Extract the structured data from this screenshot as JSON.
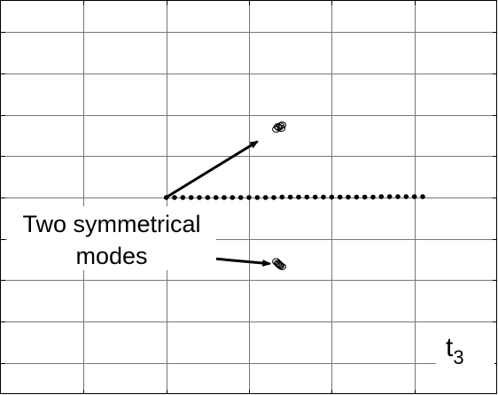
{
  "chart_data": {
    "type": "scatter",
    "title": "",
    "xlabel": "",
    "ylabel": "",
    "xlim": [
      0,
      6
    ],
    "ylim": [
      0,
      9.5
    ],
    "grid": true,
    "x_gridlines": [
      1,
      2,
      3,
      4,
      5
    ],
    "y_gridlines": [
      0.75,
      1.75,
      2.75,
      3.75,
      4.75,
      5.75,
      6.75,
      7.75,
      8.75
    ],
    "series": [
      {
        "marker": "filled-dot",
        "x": [
          2.0,
          2.1,
          2.2,
          2.3,
          2.4,
          2.5,
          2.6,
          2.7,
          2.8,
          2.9,
          3.0,
          3.1,
          3.2,
          3.3,
          3.4,
          3.5,
          3.6,
          3.7,
          3.8,
          3.9,
          4.0,
          4.1,
          4.2,
          4.3,
          4.4,
          4.5,
          4.6,
          4.7,
          4.8,
          4.9,
          5.0,
          5.1
        ],
        "y": [
          4.75,
          4.75,
          4.75,
          4.75,
          4.75,
          4.75,
          4.75,
          4.75,
          4.75,
          4.75,
          4.75,
          4.75,
          4.75,
          4.75,
          4.76,
          4.76,
          4.76,
          4.76,
          4.76,
          4.76,
          4.76,
          4.76,
          4.76,
          4.76,
          4.76,
          4.76,
          4.77,
          4.77,
          4.77,
          4.77,
          4.77,
          4.77
        ]
      },
      {
        "marker": "open-circle",
        "x": [
          3.33,
          3.36,
          3.38,
          3.4,
          3.35,
          3.39
        ],
        "y": [
          6.4,
          6.44,
          6.48,
          6.5,
          6.46,
          6.42
        ]
      },
      {
        "marker": "open-circle",
        "x": [
          3.33,
          3.35,
          3.37,
          3.4,
          3.36,
          3.38
        ],
        "y": [
          3.2,
          3.16,
          3.12,
          3.08,
          3.14,
          3.1
        ]
      }
    ],
    "annotations": {
      "text_line1": "Two symmetrical",
      "text_line2": "modes",
      "corner_label_base": "t",
      "corner_label_sub": "3"
    },
    "arrows": [
      {
        "from": [
          2.02,
          4.78
        ],
        "to": [
          3.1,
          6.1
        ]
      },
      {
        "from": [
          2.15,
          3.35
        ],
        "to": [
          3.25,
          3.15
        ]
      }
    ]
  }
}
